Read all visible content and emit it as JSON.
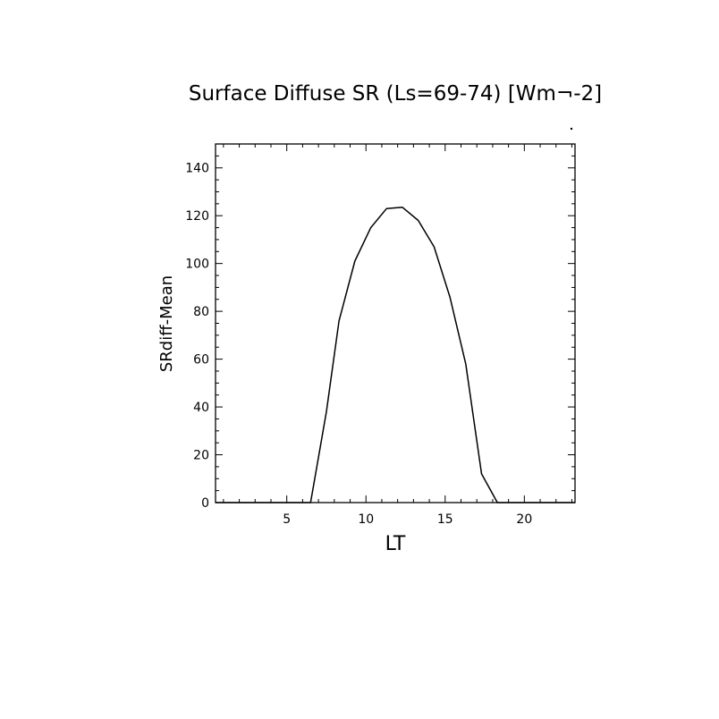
{
  "chart_data": {
    "type": "line",
    "title": "Surface Diffuse SR (Ls=69-74) [Wm¬-2]",
    "xlabel": "LT",
    "ylabel": "SRdiff-Mean",
    "xlim": [
      0.5,
      23.2
    ],
    "ylim": [
      0,
      150
    ],
    "x_ticks": [
      5,
      10,
      15,
      20
    ],
    "y_ticks": [
      0,
      20,
      40,
      60,
      80,
      100,
      120,
      140
    ],
    "grid": false,
    "legend": "none",
    "series": [
      {
        "x": [
          0.5,
          1.5,
          2.5,
          3.5,
          4.5,
          5.5,
          6.5,
          7.5,
          8.3,
          9.3,
          10.3,
          11.3,
          12.3,
          13.3,
          14.3,
          15.3,
          16.3,
          17.3,
          18.3,
          19.3,
          20.3,
          21.3,
          22.3,
          23.2
        ],
        "y": [
          0,
          0,
          0,
          0,
          0,
          0,
          0,
          38,
          76,
          101,
          115,
          123,
          123.5,
          118,
          107,
          86,
          58,
          12,
          0,
          0,
          0,
          0,
          0,
          0
        ]
      }
    ],
    "line_color": "#000000"
  }
}
